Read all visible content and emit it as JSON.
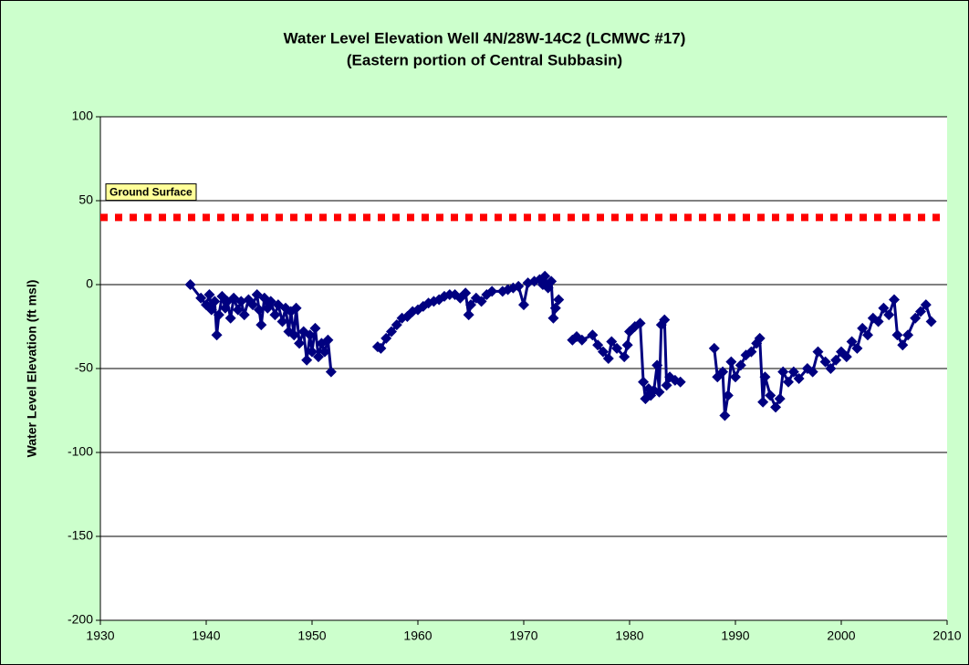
{
  "chart_data": {
    "type": "line",
    "title": "Water Level Elevation Well 4N/28W-14C2 (LCMWC #17)",
    "subtitle": "(Eastern portion of Central Subbasin)",
    "y_label": "Water Level Elevation (ft msl)",
    "xlim": [
      1930,
      2010
    ],
    "xticks": [
      1930,
      1940,
      1950,
      1960,
      1970,
      1980,
      1990,
      2000,
      2010
    ],
    "ylim": [
      -200,
      100
    ],
    "yticks": [
      -200,
      -150,
      -100,
      -50,
      0,
      50,
      100
    ],
    "grid": true,
    "reference_line": {
      "value": 40,
      "label": "Ground Surface",
      "color": "#ff0000"
    },
    "x": [
      1938.5,
      1939.5,
      1940.0,
      1940.3,
      1940.5,
      1940.8,
      1941.0,
      1941.2,
      1941.5,
      1941.8,
      1942.0,
      1942.3,
      1942.6,
      1943.0,
      1943.3,
      1943.6,
      1944.0,
      1944.4,
      1944.8,
      1945.0,
      1945.2,
      1945.5,
      1945.8,
      1946.1,
      1946.5,
      1946.8,
      1947.2,
      1947.5,
      1947.8,
      1948.0,
      1948.3,
      1948.5,
      1948.8,
      1949.2,
      1949.5,
      1949.8,
      1950.0,
      1950.3,
      1950.6,
      1950.9,
      1951.2,
      1951.5,
      1951.8,
      1954.0,
      1956.2,
      1956.5,
      1957.0,
      1957.5,
      1958.0,
      1958.5,
      1959.0,
      1959.5,
      1960.0,
      1960.5,
      1961.0,
      1961.5,
      1962.0,
      1962.5,
      1963.0,
      1963.5,
      1964.0,
      1964.5,
      1964.8,
      1965.0,
      1965.5,
      1966.0,
      1966.5,
      1967.0,
      1968.0,
      1968.5,
      1969.0,
      1969.5,
      1970.0,
      1970.4,
      1971.0,
      1971.5,
      1971.8,
      1972.0,
      1972.3,
      1972.6,
      1972.8,
      1973.0,
      1973.3,
      1974.0,
      1974.6,
      1975.0,
      1975.5,
      1976.5,
      1977.0,
      1977.5,
      1978.0,
      1978.3,
      1978.8,
      1979.5,
      1979.8,
      1980.0,
      1980.5,
      1981.0,
      1981.3,
      1981.5,
      1981.8,
      1982.0,
      1982.3,
      1982.6,
      1982.8,
      1983.0,
      1983.3,
      1983.5,
      1983.8,
      1984.3,
      1984.8,
      1986.0,
      1988.0,
      1988.3,
      1988.8,
      1989.0,
      1989.3,
      1989.6,
      1990.0,
      1990.5,
      1991.0,
      1991.5,
      1992.0,
      1992.3,
      1992.6,
      1992.8,
      1993.3,
      1993.8,
      1994.2,
      1994.5,
      1995.0,
      1995.5,
      1996.0,
      1996.8,
      1997.3,
      1997.8,
      1998.5,
      1999.0,
      1999.5,
      2000.0,
      2000.5,
      2001.0,
      2001.5,
      2002.0,
      2002.5,
      2003.0,
      2003.5,
      2004.0,
      2004.5,
      2005.0,
      2005.3,
      2005.8,
      2006.3,
      2007.0,
      2007.5,
      2008.0,
      2008.5
    ],
    "series": [
      {
        "name": "Water Level Elevation",
        "color": "#000080",
        "values": [
          0,
          -8,
          -12,
          -6,
          -15,
          -10,
          -30,
          -18,
          -7,
          -14,
          -10,
          -20,
          -8,
          -15,
          -10,
          -18,
          -9,
          -12,
          -6,
          -15,
          -24,
          -8,
          -14,
          -10,
          -18,
          -12,
          -22,
          -14,
          -28,
          -16,
          -30,
          -14,
          -35,
          -28,
          -45,
          -30,
          -40,
          -26,
          -43,
          -35,
          -40,
          -33,
          -52,
          null,
          -37,
          -38,
          -32,
          -28,
          -24,
          -20,
          -19,
          -16,
          -15,
          -13,
          -11,
          -10,
          -9,
          -7,
          -6,
          -6,
          -8,
          -5,
          -18,
          -12,
          -8,
          -10,
          -6,
          -4,
          -4,
          -3,
          -2,
          -1,
          -12,
          1,
          2,
          3,
          0,
          5,
          -2,
          2,
          -20,
          -14,
          -9,
          null,
          -33,
          -31,
          -33,
          -30,
          -36,
          -40,
          -44,
          -34,
          -38,
          -43,
          -36,
          -28,
          -25,
          -23,
          -58,
          -68,
          -62,
          -66,
          -63,
          -48,
          -64,
          -24,
          -21,
          -60,
          -55,
          -57,
          -58,
          null,
          -38,
          -55,
          -52,
          -78,
          -66,
          -46,
          -55,
          -48,
          -42,
          -40,
          -35,
          -32,
          -70,
          -55,
          -66,
          -73,
          -68,
          -52,
          -58,
          -52,
          -56,
          -50,
          -52,
          -40,
          -46,
          -50,
          -45,
          -40,
          -43,
          -34,
          -38,
          -26,
          -30,
          -20,
          -22,
          -14,
          -18,
          -9,
          -30,
          -36,
          -30,
          -20,
          -16,
          -12,
          -22
        ]
      }
    ]
  }
}
